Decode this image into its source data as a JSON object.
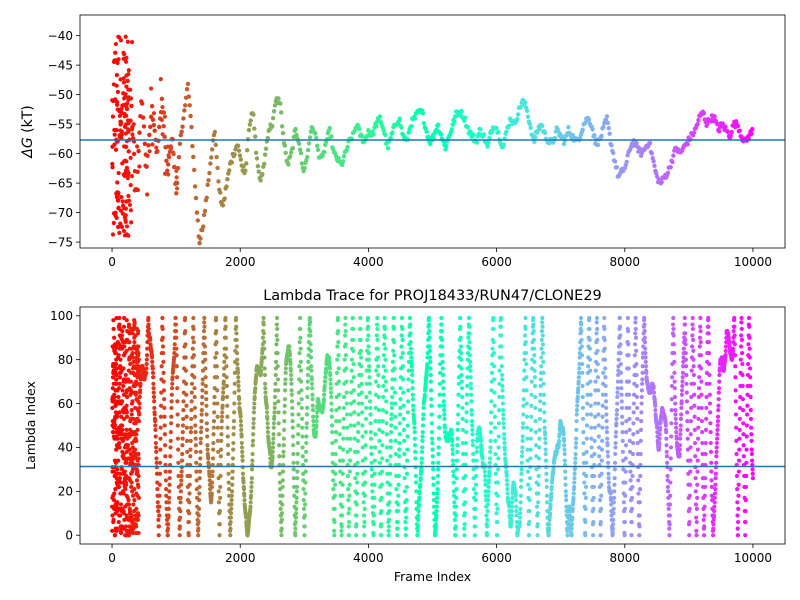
{
  "figure": {
    "title": ""
  },
  "chart_data": [
    {
      "type": "scatter",
      "title": "",
      "xlabel": "",
      "ylabel": "ΔG (kT)",
      "ylabel_symbol": "ΔG",
      "ylabel_unit": " (kT)",
      "xlim": [
        -500,
        10500
      ],
      "ylim": [
        -76,
        -36.5
      ],
      "xticks": [
        0,
        2000,
        4000,
        6000,
        8000,
        10000
      ],
      "yticks": [
        -75,
        -70,
        -65,
        -60,
        -55,
        -50,
        -45,
        -40
      ],
      "hline": -57.7,
      "hline_color": "#1f77b4",
      "grid": false,
      "legend": "none",
      "colormap": "rainbow",
      "color_by": "frame index (red at 0 → violet at 10000)",
      "trace": [
        [
          120,
          -57
        ],
        [
          180,
          -49
        ],
        [
          240,
          -64
        ],
        [
          300,
          -52
        ],
        [
          380,
          -67
        ],
        [
          460,
          -50
        ],
        [
          540,
          -62
        ],
        [
          620,
          -52
        ],
        [
          700,
          -60
        ],
        [
          780,
          -51
        ],
        [
          860,
          -63
        ],
        [
          940,
          -57
        ],
        [
          1000,
          -67
        ],
        [
          1060,
          -58
        ],
        [
          1120,
          -54
        ],
        [
          1180,
          -48
        ],
        [
          1240,
          -56
        ],
        [
          1300,
          -66
        ],
        [
          1360,
          -75
        ],
        [
          1420,
          -72
        ],
        [
          1480,
          -67
        ],
        [
          1540,
          -61
        ],
        [
          1600,
          -56
        ],
        [
          1660,
          -65
        ],
        [
          1720,
          -69
        ],
        [
          1780,
          -66
        ],
        [
          1840,
          -62
        ],
        [
          1900,
          -60
        ],
        [
          1960,
          -58
        ],
        [
          2020,
          -62
        ],
        [
          2080,
          -63
        ],
        [
          2140,
          -55
        ],
        [
          2200,
          -53
        ],
        [
          2260,
          -61
        ],
        [
          2320,
          -65
        ],
        [
          2380,
          -61
        ],
        [
          2440,
          -56
        ],
        [
          2500,
          -55
        ],
        [
          2560,
          -51
        ],
        [
          2620,
          -51
        ],
        [
          2680,
          -58
        ],
        [
          2740,
          -62
        ],
        [
          2800,
          -60
        ],
        [
          2860,
          -56
        ],
        [
          2920,
          -58
        ],
        [
          2980,
          -63
        ],
        [
          3040,
          -61
        ],
        [
          3100,
          -56
        ],
        [
          3160,
          -56
        ],
        [
          3220,
          -60
        ],
        [
          3280,
          -61
        ],
        [
          3340,
          -58
        ],
        [
          3400,
          -56
        ],
        [
          3460,
          -60
        ],
        [
          3520,
          -61
        ],
        [
          3580,
          -62
        ],
        [
          3640,
          -60
        ],
        [
          3700,
          -58
        ],
        [
          3760,
          -57
        ],
        [
          3820,
          -55
        ],
        [
          3880,
          -57
        ],
        [
          3940,
          -58
        ],
        [
          4000,
          -56
        ],
        [
          4060,
          -57
        ],
        [
          4120,
          -55
        ],
        [
          4180,
          -54
        ],
        [
          4240,
          -56
        ],
        [
          4300,
          -59
        ],
        [
          4360,
          -57
        ],
        [
          4420,
          -55
        ],
        [
          4480,
          -54
        ],
        [
          4540,
          -57
        ],
        [
          4600,
          -58
        ],
        [
          4660,
          -55
        ],
        [
          4720,
          -54
        ],
        [
          4780,
          -53
        ],
        [
          4840,
          -53
        ],
        [
          4900,
          -56
        ],
        [
          4960,
          -58
        ],
        [
          5020,
          -57
        ],
        [
          5080,
          -55
        ],
        [
          5140,
          -57
        ],
        [
          5200,
          -59
        ],
        [
          5260,
          -57
        ],
        [
          5320,
          -55
        ],
        [
          5380,
          -53
        ],
        [
          5440,
          -53
        ],
        [
          5500,
          -54
        ],
        [
          5560,
          -56
        ],
        [
          5620,
          -57
        ],
        [
          5680,
          -58
        ],
        [
          5740,
          -56
        ],
        [
          5800,
          -57
        ],
        [
          5860,
          -59
        ],
        [
          5920,
          -56
        ],
        [
          5980,
          -55
        ],
        [
          6040,
          -57
        ],
        [
          6100,
          -59
        ],
        [
          6160,
          -56
        ],
        [
          6220,
          -54
        ],
        [
          6280,
          -55
        ],
        [
          6340,
          -53
        ],
        [
          6400,
          -51
        ],
        [
          6460,
          -52
        ],
        [
          6520,
          -55
        ],
        [
          6580,
          -58
        ],
        [
          6640,
          -56
        ],
        [
          6700,
          -55
        ],
        [
          6760,
          -57
        ],
        [
          6820,
          -58
        ],
        [
          6880,
          -58
        ],
        [
          6940,
          -56
        ],
        [
          7000,
          -57
        ],
        [
          7060,
          -58
        ],
        [
          7120,
          -56
        ],
        [
          7180,
          -57
        ],
        [
          7240,
          -58
        ],
        [
          7300,
          -57
        ],
        [
          7360,
          -55
        ],
        [
          7420,
          -54
        ],
        [
          7480,
          -55
        ],
        [
          7540,
          -58
        ],
        [
          7600,
          -58
        ],
        [
          7660,
          -56
        ],
        [
          7720,
          -54
        ],
        [
          7780,
          -58
        ],
        [
          7840,
          -61
        ],
        [
          7900,
          -64
        ],
        [
          7960,
          -63
        ],
        [
          8020,
          -62
        ],
        [
          8080,
          -59
        ],
        [
          8140,
          -58
        ],
        [
          8200,
          -59
        ],
        [
          8260,
          -60
        ],
        [
          8320,
          -59
        ],
        [
          8380,
          -58
        ],
        [
          8440,
          -61
        ],
        [
          8500,
          -64
        ],
        [
          8560,
          -65
        ],
        [
          8620,
          -64
        ],
        [
          8680,
          -63
        ],
        [
          8740,
          -61
        ],
        [
          8800,
          -59
        ],
        [
          8860,
          -60
        ],
        [
          8920,
          -59
        ],
        [
          8980,
          -58
        ],
        [
          9040,
          -57
        ],
        [
          9100,
          -56
        ],
        [
          9160,
          -54
        ],
        [
          9220,
          -53
        ],
        [
          9280,
          -55
        ],
        [
          9340,
          -54
        ],
        [
          9400,
          -54
        ],
        [
          9460,
          -56
        ],
        [
          9520,
          -55
        ],
        [
          9580,
          -56
        ],
        [
          9640,
          -57
        ],
        [
          9700,
          -55
        ],
        [
          9760,
          -55
        ],
        [
          9820,
          -57
        ],
        [
          9880,
          -58
        ],
        [
          9940,
          -57
        ],
        [
          10000,
          -56
        ]
      ]
    },
    {
      "type": "scatter",
      "title": "Lambda Trace for PROJ18433/RUN47/CLONE29",
      "xlabel": "Frame Index",
      "ylabel": "Lambda Index",
      "xlim": [
        -500,
        10500
      ],
      "ylim": [
        -4,
        104
      ],
      "xticks": [
        0,
        2000,
        4000,
        6000,
        8000,
        10000
      ],
      "yticks": [
        0,
        20,
        40,
        60,
        80,
        100
      ],
      "hline": 31.3,
      "hline_color": "#1f77b4",
      "grid": false,
      "legend": "none",
      "colormap": "rainbow",
      "color_by": "frame index (red at 0 → violet at 10000)",
      "lambda_range": [
        0,
        99
      ]
    }
  ]
}
